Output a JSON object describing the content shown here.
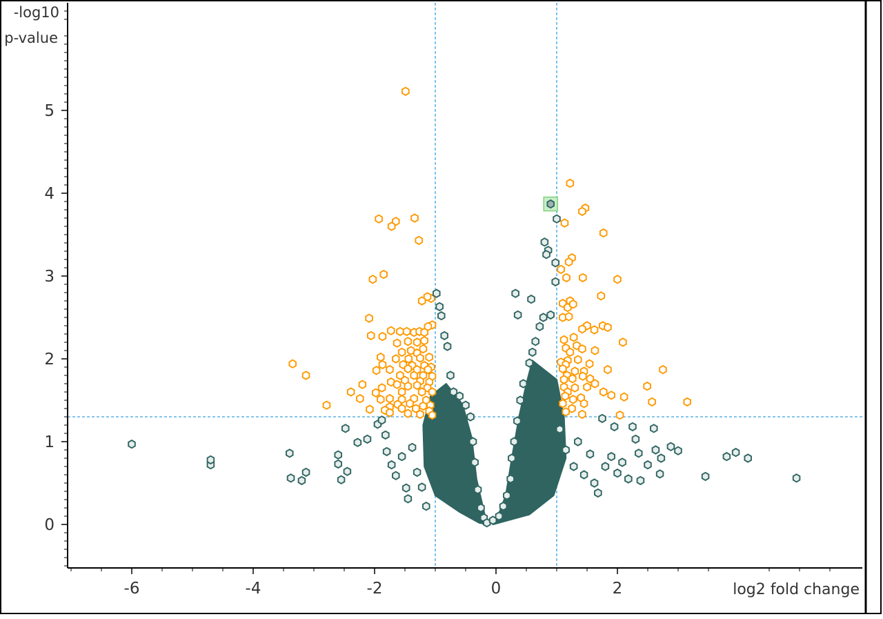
{
  "chart_data": {
    "type": "scatter",
    "title": "",
    "xlabel": "log2 fold change",
    "ylabel_line1": "-log10",
    "ylabel_line2": "p-value",
    "xlim": [
      -7,
      6
    ],
    "ylim": [
      -0.5,
      6.25
    ],
    "x_ticks": [
      -6,
      -4,
      -2,
      0,
      2
    ],
    "x_tick_labels": [
      "-6",
      "-4",
      "-2",
      "0",
      "2"
    ],
    "y_ticks": [
      0,
      1,
      2,
      3,
      4,
      5
    ],
    "y_tick_labels": [
      "0",
      "1",
      "2",
      "3",
      "4",
      "5"
    ],
    "threshold_lines": {
      "x": [
        -1,
        1
      ],
      "y": 1.3
    },
    "colors": {
      "not_significant": "#2f6461",
      "significant": "#ff9900",
      "threshold_line": "#3aa0e0",
      "selection": "#7fd07f",
      "axis": "#000000"
    },
    "grid": false,
    "legend": "none",
    "selected_point": {
      "x": 0.9,
      "y": 3.87
    },
    "series": [
      {
        "key": "significant",
        "points": [
          [
            -1.49,
            5.23
          ],
          [
            1.22,
            4.12
          ],
          [
            1.47,
            3.82
          ],
          [
            1.42,
            3.78
          ],
          [
            1.13,
            3.64
          ],
          [
            -1.93,
            3.69
          ],
          [
            -1.65,
            3.66
          ],
          [
            -1.72,
            3.6
          ],
          [
            -1.34,
            3.7
          ],
          [
            1.77,
            3.52
          ],
          [
            -1.27,
            3.43
          ],
          [
            1.25,
            3.22
          ],
          [
            1.2,
            3.17
          ],
          [
            1.07,
            3.08
          ],
          [
            2.0,
            2.96
          ],
          [
            1.43,
            2.98
          ],
          [
            1.16,
            2.98
          ],
          [
            -1.85,
            3.02
          ],
          [
            -2.03,
            2.96
          ],
          [
            1.73,
            2.76
          ],
          [
            -1.07,
            2.73
          ],
          [
            -1.13,
            2.75
          ],
          [
            -1.22,
            2.7
          ],
          [
            1.22,
            2.7
          ],
          [
            1.1,
            2.67
          ],
          [
            1.18,
            2.62
          ],
          [
            1.27,
            2.66
          ],
          [
            1.1,
            2.5
          ],
          [
            1.2,
            2.51
          ],
          [
            -2.09,
            2.49
          ],
          [
            1.5,
            2.4
          ],
          [
            1.76,
            2.4
          ],
          [
            1.84,
            2.38
          ],
          [
            1.42,
            2.36
          ],
          [
            1.62,
            2.35
          ],
          [
            -1.05,
            2.41
          ],
          [
            -1.12,
            2.39
          ],
          [
            -1.58,
            2.33
          ],
          [
            -1.73,
            2.34
          ],
          [
            -1.47,
            2.33
          ],
          [
            -1.35,
            2.32
          ],
          [
            -1.26,
            2.33
          ],
          [
            -1.18,
            2.32
          ],
          [
            -2.06,
            2.28
          ],
          [
            -1.87,
            2.27
          ],
          [
            1.28,
            2.26
          ],
          [
            1.12,
            2.23
          ],
          [
            2.09,
            2.2
          ],
          [
            -1.63,
            2.19
          ],
          [
            -1.3,
            2.2
          ],
          [
            -1.45,
            2.21
          ],
          [
            -1.18,
            2.22
          ],
          [
            1.33,
            2.16
          ],
          [
            1.15,
            2.13
          ],
          [
            1.63,
            2.1
          ],
          [
            1.42,
            2.12
          ],
          [
            1.22,
            2.08
          ],
          [
            -1.2,
            2.12
          ],
          [
            -1.4,
            2.1
          ],
          [
            -1.55,
            2.08
          ],
          [
            -1.3,
            2.07
          ],
          [
            -1.9,
            2.02
          ],
          [
            -1.65,
            2.0
          ],
          [
            -1.44,
            2.0
          ],
          [
            -1.25,
            2.01
          ],
          [
            -1.1,
            2.02
          ],
          [
            1.18,
            1.98
          ],
          [
            1.07,
            1.96
          ],
          [
            1.35,
            1.99
          ],
          [
            1.15,
            1.93
          ],
          [
            1.54,
            1.94
          ],
          [
            -1.87,
            1.93
          ],
          [
            -1.53,
            1.93
          ],
          [
            -1.38,
            1.92
          ],
          [
            -1.18,
            1.92
          ],
          [
            -1.07,
            1.9
          ],
          [
            -1.97,
            1.86
          ],
          [
            -1.75,
            1.87
          ],
          [
            -1.45,
            1.88
          ],
          [
            -1.3,
            1.87
          ],
          [
            -1.12,
            1.87
          ],
          [
            2.75,
            1.87
          ],
          [
            1.84,
            1.87
          ],
          [
            1.1,
            1.88
          ],
          [
            1.3,
            1.85
          ],
          [
            1.45,
            1.85
          ],
          [
            -3.35,
            1.94
          ],
          [
            -3.13,
            1.8
          ],
          [
            -1.58,
            1.8
          ],
          [
            -1.35,
            1.8
          ],
          [
            -1.2,
            1.8
          ],
          [
            -1.05,
            1.79
          ],
          [
            1.17,
            1.8
          ],
          [
            1.43,
            1.79
          ],
          [
            1.12,
            1.75
          ],
          [
            1.26,
            1.76
          ],
          [
            1.55,
            1.76
          ],
          [
            -1.73,
            1.72
          ],
          [
            -1.5,
            1.74
          ],
          [
            -1.25,
            1.73
          ],
          [
            -1.1,
            1.72
          ],
          [
            1.63,
            1.7
          ],
          [
            -2.2,
            1.69
          ],
          [
            -1.88,
            1.65
          ],
          [
            -1.63,
            1.69
          ],
          [
            -1.45,
            1.67
          ],
          [
            -1.3,
            1.68
          ],
          [
            -1.13,
            1.65
          ],
          [
            1.12,
            1.66
          ],
          [
            1.3,
            1.65
          ],
          [
            1.5,
            1.66
          ],
          [
            2.49,
            1.67
          ],
          [
            1.77,
            1.6
          ],
          [
            -2.39,
            1.6
          ],
          [
            -1.98,
            1.59
          ],
          [
            -1.55,
            1.6
          ],
          [
            -1.22,
            1.6
          ],
          [
            -1.05,
            1.6
          ],
          [
            1.18,
            1.6
          ],
          [
            1.9,
            1.56
          ],
          [
            2.11,
            1.54
          ],
          [
            1.4,
            1.53
          ],
          [
            1.14,
            1.55
          ],
          [
            -2.24,
            1.52
          ],
          [
            -1.9,
            1.51
          ],
          [
            -1.75,
            1.52
          ],
          [
            -1.55,
            1.51
          ],
          [
            -1.35,
            1.52
          ],
          [
            -1.15,
            1.5
          ],
          [
            1.27,
            1.51
          ],
          [
            2.57,
            1.48
          ],
          [
            3.15,
            1.48
          ],
          [
            1.1,
            1.46
          ],
          [
            1.45,
            1.46
          ],
          [
            -2.79,
            1.44
          ],
          [
            -1.62,
            1.45
          ],
          [
            -1.42,
            1.46
          ],
          [
            -1.75,
            1.42
          ],
          [
            -1.2,
            1.43
          ],
          [
            -1.08,
            1.44
          ],
          [
            -2.08,
            1.39
          ],
          [
            -1.83,
            1.38
          ],
          [
            -1.55,
            1.4
          ],
          [
            -1.32,
            1.4
          ],
          [
            -1.1,
            1.37
          ],
          [
            1.25,
            1.4
          ],
          [
            1.15,
            1.36
          ],
          [
            2.04,
            1.32
          ],
          [
            1.42,
            1.33
          ],
          [
            -1.75,
            1.35
          ],
          [
            -1.45,
            1.34
          ],
          [
            -1.25,
            1.33
          ],
          [
            -1.05,
            1.32
          ]
        ]
      },
      {
        "key": "not_significant",
        "points": [
          [
            -6.0,
            0.97
          ],
          [
            -4.7,
            0.72
          ],
          [
            -4.7,
            0.78
          ],
          [
            -3.4,
            0.86
          ],
          [
            -3.38,
            0.56
          ],
          [
            -3.2,
            0.53
          ],
          [
            -3.13,
            0.63
          ],
          [
            -2.6,
            0.84
          ],
          [
            -2.6,
            0.73
          ],
          [
            -2.55,
            0.54
          ],
          [
            -2.45,
            0.64
          ],
          [
            -2.48,
            1.16
          ],
          [
            -2.28,
            0.99
          ],
          [
            -2.12,
            1.03
          ],
          [
            -1.95,
            1.21
          ],
          [
            -1.88,
            1.26
          ],
          [
            -1.82,
            1.08
          ],
          [
            -1.8,
            0.88
          ],
          [
            -1.72,
            0.72
          ],
          [
            -1.65,
            0.59
          ],
          [
            -1.55,
            0.82
          ],
          [
            -1.48,
            0.44
          ],
          [
            -1.45,
            0.31
          ],
          [
            -1.38,
            0.93
          ],
          [
            -1.3,
            0.63
          ],
          [
            -1.22,
            0.45
          ],
          [
            -1.15,
            0.22
          ],
          [
            -0.98,
            2.79
          ],
          [
            -0.93,
            2.63
          ],
          [
            -0.9,
            2.52
          ],
          [
            -0.85,
            2.28
          ],
          [
            -0.8,
            2.15
          ],
          [
            -0.75,
            1.8
          ],
          [
            -0.7,
            1.6
          ],
          [
            -0.6,
            1.55
          ],
          [
            -0.5,
            1.44
          ],
          [
            -0.42,
            1.3
          ],
          [
            -0.38,
            1.0
          ],
          [
            -0.35,
            0.75
          ],
          [
            -0.3,
            0.42
          ],
          [
            -0.25,
            0.2
          ],
          [
            -0.2,
            0.08
          ],
          [
            -0.15,
            0.02
          ],
          [
            -0.05,
            0.05
          ],
          [
            0.05,
            0.1
          ],
          [
            0.12,
            0.22
          ],
          [
            0.18,
            0.35
          ],
          [
            0.24,
            0.55
          ],
          [
            0.32,
            2.79
          ],
          [
            0.36,
            2.53
          ],
          [
            0.58,
            2.72
          ],
          [
            0.8,
            3.41
          ],
          [
            0.86,
            3.31
          ],
          [
            0.83,
            3.26
          ],
          [
            1.0,
            3.69
          ],
          [
            0.98,
            3.16
          ],
          [
            0.98,
            2.93
          ],
          [
            0.9,
            2.53
          ],
          [
            0.78,
            2.5
          ],
          [
            0.72,
            2.39
          ],
          [
            0.65,
            2.21
          ],
          [
            0.6,
            2.08
          ],
          [
            0.55,
            1.95
          ],
          [
            0.45,
            1.7
          ],
          [
            0.4,
            1.5
          ],
          [
            0.35,
            1.25
          ],
          [
            0.3,
            1.0
          ],
          [
            0.26,
            0.8
          ],
          [
            1.05,
            1.15
          ],
          [
            1.15,
            0.9
          ],
          [
            1.28,
            0.7
          ],
          [
            1.35,
            1.0
          ],
          [
            1.45,
            0.6
          ],
          [
            1.55,
            0.85
          ],
          [
            1.62,
            0.5
          ],
          [
            1.68,
            0.38
          ],
          [
            1.75,
            1.28
          ],
          [
            1.8,
            0.7
          ],
          [
            1.9,
            0.82
          ],
          [
            1.95,
            1.18
          ],
          [
            2.0,
            0.62
          ],
          [
            2.08,
            0.75
          ],
          [
            2.18,
            0.55
          ],
          [
            2.25,
            1.18
          ],
          [
            2.3,
            1.03
          ],
          [
            2.35,
            0.86
          ],
          [
            2.38,
            0.53
          ],
          [
            2.5,
            0.72
          ],
          [
            2.6,
            1.16
          ],
          [
            2.63,
            0.9
          ],
          [
            2.7,
            0.61
          ],
          [
            2.72,
            0.8
          ],
          [
            2.88,
            0.94
          ],
          [
            3.0,
            0.89
          ],
          [
            3.45,
            0.58
          ],
          [
            3.8,
            0.82
          ],
          [
            3.95,
            0.87
          ],
          [
            4.15,
            0.8
          ],
          [
            4.95,
            0.56
          ]
        ]
      }
    ],
    "core_cloud": {
      "key": "not_significant",
      "left_lobe": {
        "outer": [
          [
            -1.08,
            1.55
          ],
          [
            -1.2,
            1.2
          ],
          [
            -1.18,
            0.7
          ],
          [
            -1.0,
            0.35
          ],
          [
            -0.6,
            0.15
          ],
          [
            -0.28,
            0.02
          ]
        ],
        "inner": [
          [
            -0.15,
            0.0
          ],
          [
            -0.18,
            0.1
          ],
          [
            -0.32,
            0.55
          ],
          [
            -0.4,
            1.05
          ],
          [
            -0.55,
            1.45
          ],
          [
            -0.82,
            1.7
          ]
        ]
      },
      "right_lobe": {
        "outer": [
          [
            -0.05,
            0.0
          ],
          [
            0.55,
            0.12
          ],
          [
            0.95,
            0.35
          ],
          [
            1.15,
            0.8
          ],
          [
            1.12,
            1.3
          ],
          [
            1.0,
            1.75
          ]
        ],
        "inner": [
          [
            0.6,
            1.98
          ],
          [
            0.5,
            1.7
          ],
          [
            0.38,
            1.3
          ],
          [
            0.26,
            0.8
          ],
          [
            0.16,
            0.35
          ],
          [
            0.02,
            0.08
          ]
        ]
      }
    }
  }
}
